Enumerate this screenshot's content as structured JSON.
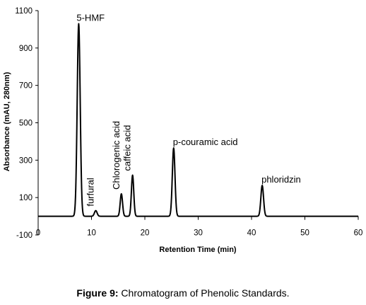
{
  "chart_data": {
    "type": "line",
    "xlabel": "Retention Time (min)",
    "ylabel": "Absorbance (mAU, 280nm)",
    "xlim": [
      0,
      60
    ],
    "ylim": [
      -100,
      1100
    ],
    "x_ticks": [
      "0",
      "10",
      "20",
      "30",
      "40",
      "50",
      "60"
    ],
    "y_ticks": [
      "-100",
      "100",
      "300",
      "500",
      "700",
      "900",
      "1100"
    ],
    "baseline": 0,
    "grid": false,
    "legend": "none",
    "line_color": "#000000",
    "peaks": [
      {
        "label": "5-HMF",
        "x": 7.6,
        "y": 1030,
        "width": 0.28,
        "label_orientation": "horizontal"
      },
      {
        "label": "furfural",
        "x": 10.8,
        "y": 30,
        "width": 0.25,
        "label_orientation": "vertical"
      },
      {
        "label": "Chlorogenic acid",
        "x": 15.6,
        "y": 120,
        "width": 0.22,
        "label_orientation": "vertical"
      },
      {
        "label": "caffeic acid",
        "x": 17.7,
        "y": 220,
        "width": 0.22,
        "label_orientation": "vertical"
      },
      {
        "label": "p-couramic acid",
        "x": 25.4,
        "y": 365,
        "width": 0.25,
        "label_orientation": "horizontal"
      },
      {
        "label": "phloridzin",
        "x": 42.0,
        "y": 165,
        "width": 0.25,
        "label_orientation": "horizontal"
      }
    ]
  },
  "caption": {
    "prefix": "Figure 9:",
    "text": " Chromatogram of Phenolic Standards."
  }
}
